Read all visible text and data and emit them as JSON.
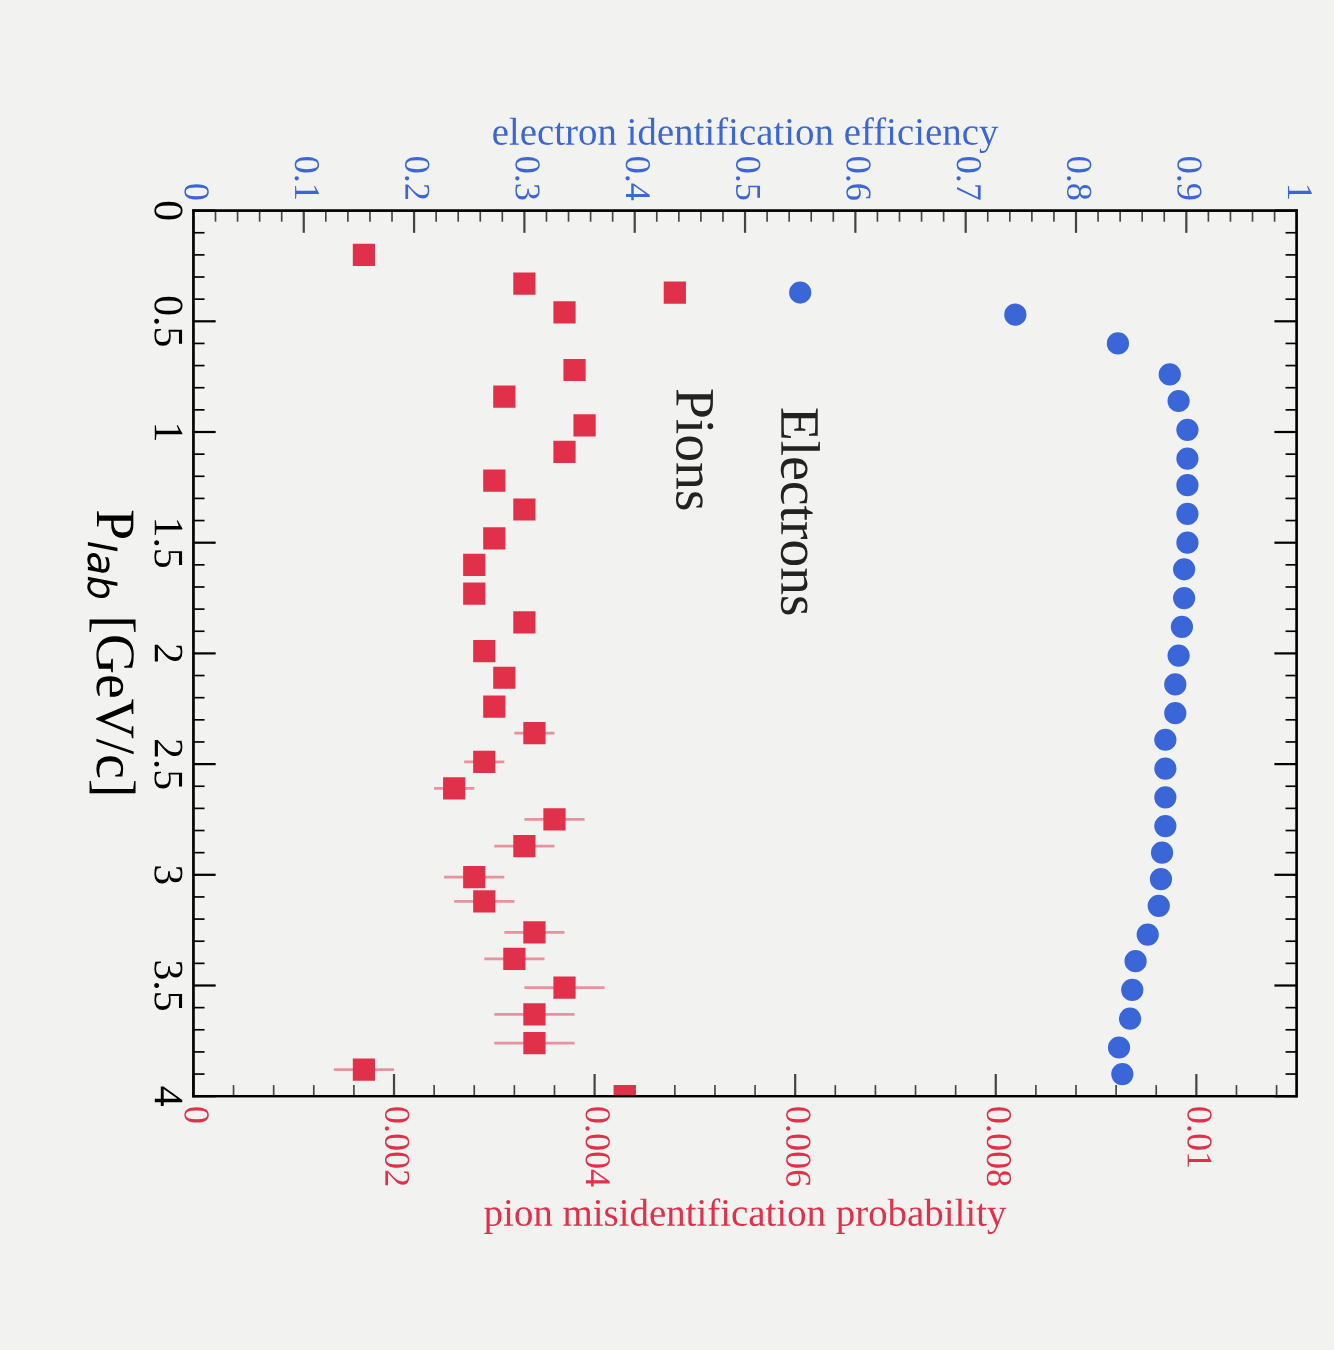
{
  "chart_data": {
    "type": "scatter",
    "xlabel": "pion misidentification probability",
    "x2label": "electron identification efficiency",
    "ylabel": "P$_{lab}$ [GeV/c]",
    "xlim": [
      0,
      0.011
    ],
    "xticks": [
      0,
      0.002,
      0.004,
      0.006,
      0.008,
      0.01
    ],
    "x2lim": [
      0,
      1
    ],
    "x2ticks": [
      0,
      0.1,
      0.2,
      0.3,
      0.4,
      0.5,
      0.6,
      0.7,
      0.8,
      0.9,
      1
    ],
    "ylim": [
      4,
      0
    ],
    "yticks": [
      0,
      0.5,
      1,
      1.5,
      2,
      2.5,
      3,
      3.5,
      4
    ],
    "grid": false,
    "legend": false,
    "series": [
      {
        "name": "Electrons",
        "axis": "x2",
        "color": "#3a66d8",
        "marker": "circle",
        "x": [
          0.55,
          0.745,
          0.838,
          0.885,
          0.893,
          0.901,
          0.901,
          0.901,
          0.901,
          0.901,
          0.898,
          0.898,
          0.896,
          0.893,
          0.89,
          0.89,
          0.881,
          0.881,
          0.881,
          0.881,
          0.878,
          0.877,
          0.875,
          0.865,
          0.854,
          0.851,
          0.849,
          0.839,
          0.842
        ],
        "values": [
          0.37,
          0.47,
          0.6,
          0.74,
          0.86,
          0.99,
          1.12,
          1.24,
          1.37,
          1.5,
          1.62,
          1.75,
          1.88,
          2.01,
          2.14,
          2.27,
          2.39,
          2.52,
          2.65,
          2.78,
          2.9,
          3.02,
          3.14,
          3.27,
          3.39,
          3.52,
          3.65,
          3.78,
          3.9
        ]
      },
      {
        "name": "Pions",
        "color": "#e0304a",
        "marker": "square",
        "x": [
          0.0017,
          0.0033,
          0.0048,
          0.0037,
          0.0038,
          0.0031,
          0.0039,
          0.0037,
          0.003,
          0.0033,
          0.003,
          0.0028,
          0.0028,
          0.0033,
          0.0029,
          0.0031,
          0.003,
          0.0034,
          0.0029,
          0.0026,
          0.0036,
          0.0033,
          0.0028,
          0.0029,
          0.0034,
          0.0032,
          0.0037,
          0.0034,
          0.0034,
          0.0017,
          0.0043
        ],
        "values": [
          0.2,
          0.33,
          0.37,
          0.46,
          0.72,
          0.84,
          0.97,
          1.09,
          1.22,
          1.35,
          1.48,
          1.6,
          1.73,
          1.86,
          1.99,
          2.11,
          2.24,
          2.36,
          2.49,
          2.61,
          2.75,
          2.87,
          3.01,
          3.12,
          3.26,
          3.38,
          3.51,
          3.63,
          3.76,
          3.88,
          4.0
        ],
        "xerrors": [
          null,
          null,
          null,
          null,
          null,
          null,
          null,
          null,
          null,
          null,
          null,
          null,
          null,
          null,
          null,
          null,
          null,
          0.0002,
          0.0002,
          0.0002,
          0.0003,
          0.0003,
          0.0003,
          0.0003,
          0.0003,
          0.0003,
          0.0004,
          0.0004,
          0.0004,
          0.0003,
          null
        ]
      }
    ]
  }
}
